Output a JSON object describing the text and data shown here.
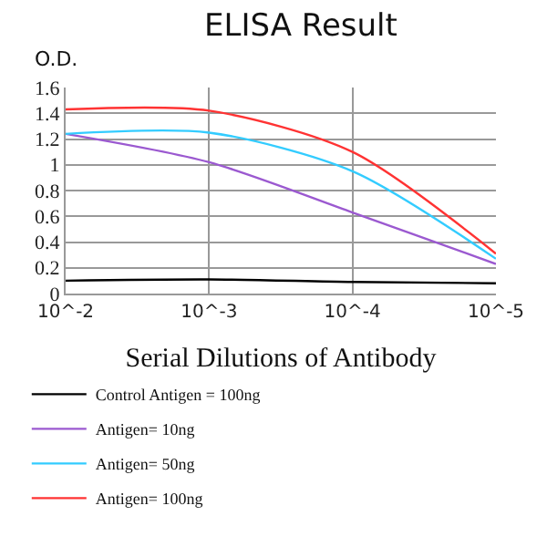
{
  "chart_data": {
    "type": "line",
    "title": "ELISA Result",
    "ylabel": "O.D.",
    "xlabel": "Serial Dilutions of Antibody",
    "categories": [
      "10^-2",
      "10^-3",
      "10^-4",
      "10^-5"
    ],
    "series": [
      {
        "name": "Control Antigen = 100ng",
        "color": "#000000",
        "values": [
          0.1,
          0.11,
          0.09,
          0.08
        ]
      },
      {
        "name": "Antigen= 10ng",
        "color": "#9b59d0",
        "values": [
          1.24,
          1.02,
          0.63,
          0.23
        ]
      },
      {
        "name": "Antigen= 50ng",
        "color": "#33ccff",
        "values": [
          1.24,
          1.25,
          0.95,
          0.27
        ]
      },
      {
        "name": "Antigen= 100ng",
        "color": "#ff3333",
        "values": [
          1.43,
          1.42,
          1.1,
          0.31
        ]
      }
    ],
    "ylim": [
      0,
      1.6
    ],
    "yticks": [
      0,
      0.2,
      0.4,
      0.6,
      0.8,
      1,
      1.2,
      1.4,
      1.6
    ],
    "grid": true,
    "legend": "bottom",
    "marker": "none",
    "line_style": "solid"
  }
}
